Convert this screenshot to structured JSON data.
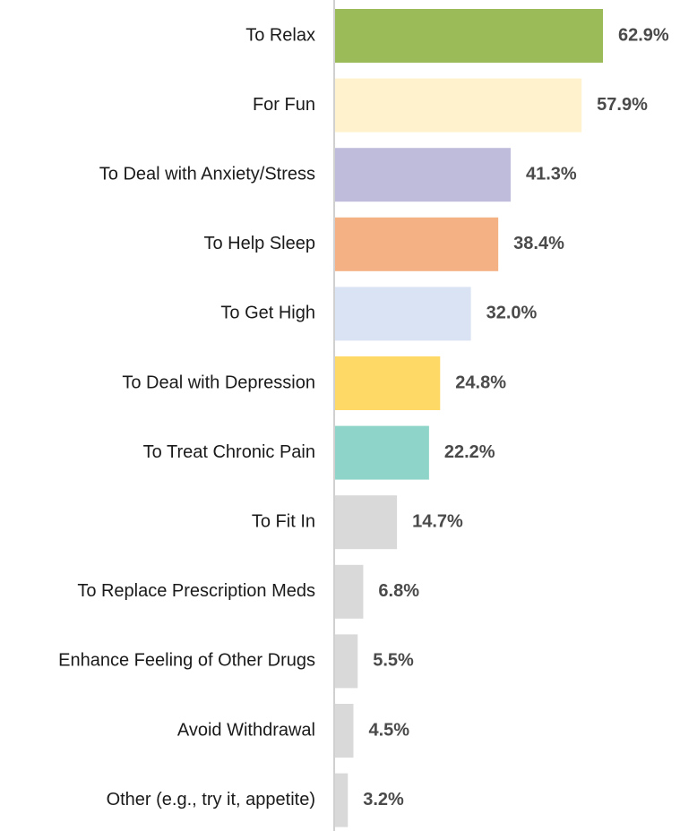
{
  "chart_data": {
    "type": "bar",
    "orientation": "horizontal",
    "title": "",
    "xlabel": "",
    "ylabel": "",
    "xlim": [
      0,
      70
    ],
    "grid": false,
    "legend": "none",
    "value_suffix": "%",
    "categories": [
      "To Relax",
      "For Fun",
      "To Deal with Anxiety/Stress",
      "To Help Sleep",
      "To Get High",
      "To Deal with Depression",
      "To Treat Chronic Pain",
      "To Fit In ",
      "To Replace Prescription Meds ",
      "Enhance Feeling of Other Drugs",
      "Avoid Withdrawal",
      "Other (e.g., try it, appetite)"
    ],
    "values": [
      62.9,
      57.9,
      41.3,
      38.4,
      32.0,
      24.8,
      22.2,
      14.7,
      6.8,
      5.5,
      4.5,
      3.2
    ],
    "value_labels": [
      "62.9%",
      "57.9%",
      "41.3%",
      "38.4%",
      "32.0%",
      "24.8%",
      "22.2%",
      "14.7%",
      "6.8%",
      "5.5%",
      "4.5%",
      "3.2%"
    ],
    "colors": [
      "#9bbb59",
      "#fff2cc",
      "#bfbcdb",
      "#f4b183",
      "#dae3f3",
      "#ffd966",
      "#8fd4c8",
      "#d9d9d9",
      "#d9d9d9",
      "#d9d9d9",
      "#d9d9d9",
      "#d9d9d9"
    ],
    "axis_color": "#d0d0d0"
  }
}
